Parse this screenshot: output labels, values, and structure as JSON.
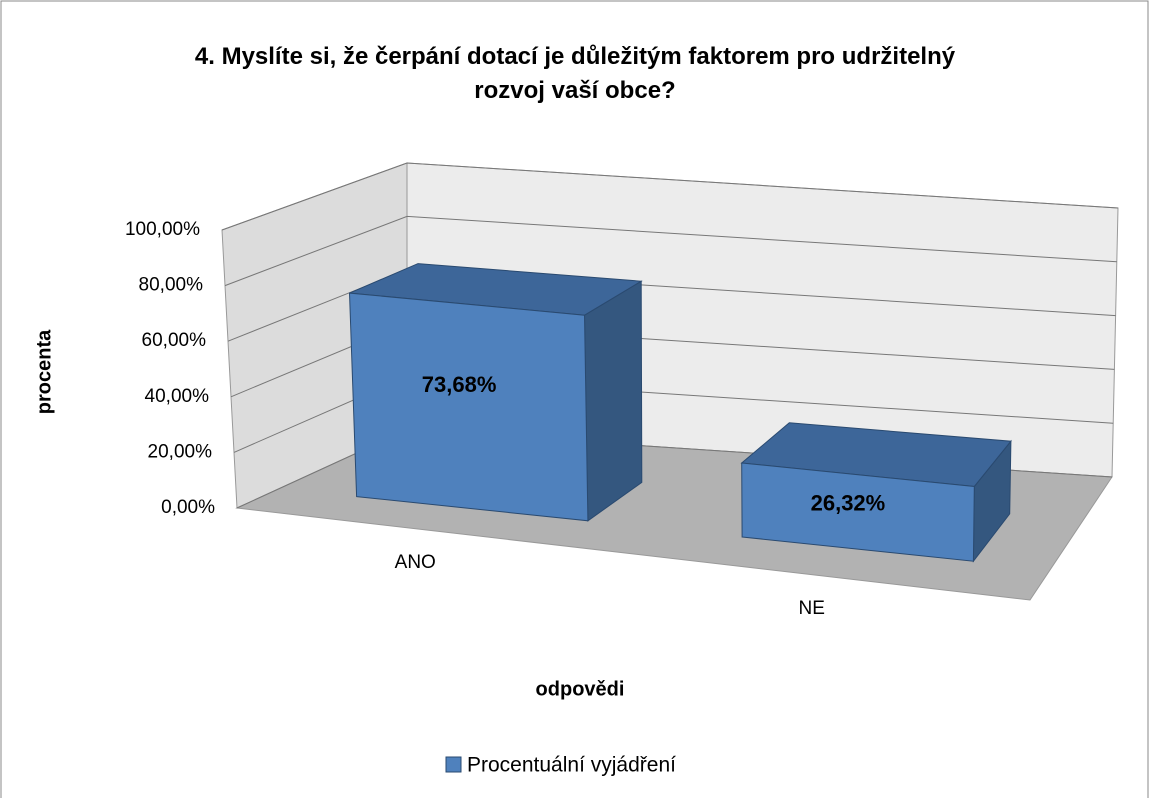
{
  "chart_data": {
    "type": "bar3d",
    "title": "4. Myslíte si, že čerpání dotací je důležitým faktorem pro udržitelný rozvoj vaší obce?",
    "xlabel": "odpovědi",
    "ylabel": "procenta",
    "categories": [
      "ANO",
      "NE"
    ],
    "series": [
      {
        "name": "Procentuální vyjádření",
        "color": "#4f81bd",
        "values": [
          73.68,
          26.32
        ],
        "value_labels": [
          "73,68%",
          "26,32%"
        ]
      }
    ],
    "ylim": [
      0,
      100
    ],
    "yticks": [
      {
        "value": 0,
        "label": "0,00%"
      },
      {
        "value": 20,
        "label": "20,00%"
      },
      {
        "value": 40,
        "label": "40,00%"
      },
      {
        "value": 60,
        "label": "60,00%"
      },
      {
        "value": 80,
        "label": "80,00%"
      },
      {
        "value": 100,
        "label": "100,00%"
      }
    ],
    "grid": true,
    "legend": "bottom"
  }
}
